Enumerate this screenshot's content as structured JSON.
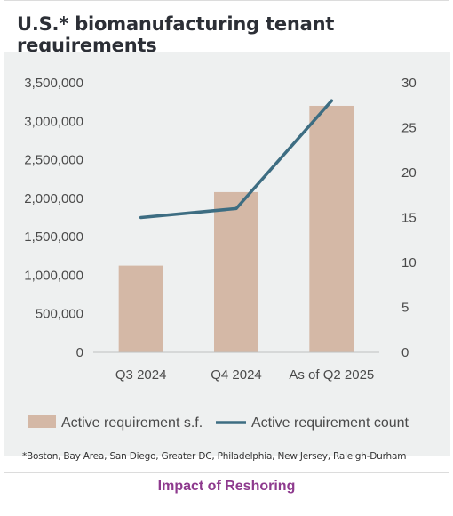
{
  "title": "U.S.* biomanufacturing tenant requirements",
  "footnote": "*Boston, Bay Area, San Diego, Greater DC, Philadelphia, New Jersey, Raleigh-Durham",
  "caption": "Impact of Reshoring",
  "colors": {
    "bar": "#d4b8a6",
    "line": "#3d6d82",
    "plot_background": "#eef0f0",
    "caption": "#8e3a8e"
  },
  "chart_data": {
    "type": "bar",
    "categories": [
      "Q3 2024",
      "Q4 2024",
      "As of Q2 2025"
    ],
    "series": [
      {
        "name": "Active requirement s.f.",
        "type": "bar",
        "axis": "left",
        "values": [
          1125000,
          2080000,
          3200000
        ]
      },
      {
        "name": "Active requirement count",
        "type": "line",
        "axis": "right",
        "values": [
          15,
          16,
          28
        ]
      }
    ],
    "y_left": {
      "ylim": [
        0,
        3500000
      ],
      "ticks": [
        0,
        500000,
        1000000,
        1500000,
        2000000,
        2500000,
        3000000,
        3500000
      ],
      "tick_labels": [
        "0",
        "500,000",
        "1,000,000",
        "1,500,000",
        "2,000,000",
        "2,500,000",
        "3,000,000",
        "3,500,000"
      ]
    },
    "y_right": {
      "ylim": [
        0,
        30
      ],
      "ticks": [
        0,
        5,
        10,
        15,
        20,
        25,
        30
      ],
      "tick_labels": [
        "0",
        "5",
        "10",
        "15",
        "20",
        "25",
        "30"
      ]
    },
    "grid": false,
    "legend_position": "bottom"
  }
}
